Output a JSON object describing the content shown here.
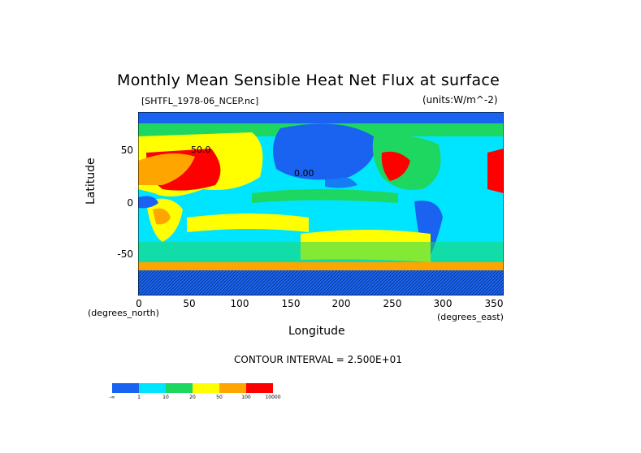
{
  "title": "Monthly Mean Sensible Heat Net Flux at surface",
  "file_label": "[SHTFL_1978-06_NCEP.nc]",
  "units_label": "(units:W/m^-2)",
  "ylabel": "Latitude",
  "xlabel": "Longitude",
  "x_unit_note_left": "(degrees_north)",
  "x_unit_note_right": "(degrees_east)",
  "y_ticks": [
    "50",
    "0",
    "-50"
  ],
  "x_ticks": [
    "0",
    "50",
    "100",
    "150",
    "200",
    "250",
    "300",
    "350"
  ],
  "contour_interval": "CONTOUR INTERVAL = 2.500E+01",
  "map_annotations": [
    "0.00",
    "50.0"
  ],
  "colorbar": {
    "colors": [
      "#1a63f0",
      "#00e5ff",
      "#1ed760",
      "#ffff00",
      "#ffa500",
      "#ff0000"
    ],
    "tick_labels": [
      "-∞",
      "1",
      "10",
      "20",
      "50",
      "100",
      "10000"
    ]
  },
  "chart_data": {
    "type": "heatmap",
    "title": "Monthly Mean Sensible Heat Net Flux at surface",
    "xlabel": "Longitude",
    "ylabel": "Latitude",
    "xlim": [
      0,
      360
    ],
    "ylim": [
      -90,
      90
    ],
    "x_ticks": [
      0,
      50,
      100,
      150,
      200,
      250,
      300,
      350
    ],
    "y_ticks": [
      50,
      0,
      -50
    ],
    "legend_placement": "bottom-left",
    "levels": [
      "-∞",
      "1",
      "10",
      "20",
      "50",
      "100",
      "10000"
    ]
  }
}
